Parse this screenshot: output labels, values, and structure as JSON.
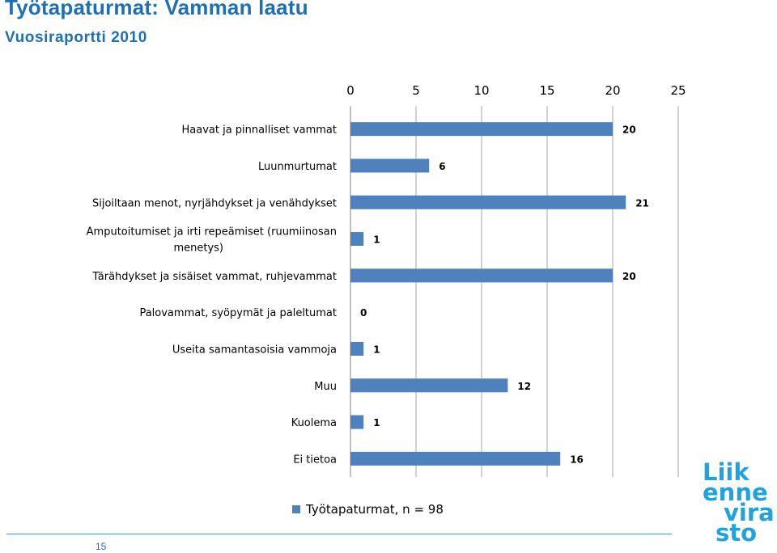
{
  "header": {
    "title": "Työtapaturmat: Vamman laatu",
    "subtitle": "Vuosiraportti 2010"
  },
  "footer": {
    "page_number": "15",
    "logo_lines": [
      "Liik",
      "enne",
      "vira",
      "sto"
    ]
  },
  "colors": {
    "accent": "#1f6fb5",
    "bar": "#4f81bd",
    "logo": "#1fa3dd"
  },
  "chart_data": {
    "type": "bar",
    "orientation": "horizontal",
    "categories": [
      "Haavat ja pinnalliset vammat",
      "Luunmurtumat",
      "Sijoiltaan menot, nyrjähdykset ja venähdykset",
      "Amputoitumiset ja irti repeämiset (ruumiinosan menetys)",
      "Tärähdykset ja sisäiset vammat, ruhjevammat",
      "Palovammat, syöpymät ja paleltumat",
      "Useita samantasoisia vammoja",
      "Muu",
      "Kuolema",
      "Ei tietoa"
    ],
    "series": [
      {
        "name": "Työtapaturmat, n = 98",
        "values": [
          20,
          6,
          21,
          1,
          20,
          0,
          1,
          12,
          1,
          16
        ]
      }
    ],
    "xlim": [
      0,
      25
    ],
    "xticks": [
      0,
      5,
      10,
      15,
      20,
      25
    ],
    "x_axis_position": "top",
    "grid": true,
    "legend": "bottom",
    "data_labels": true
  }
}
